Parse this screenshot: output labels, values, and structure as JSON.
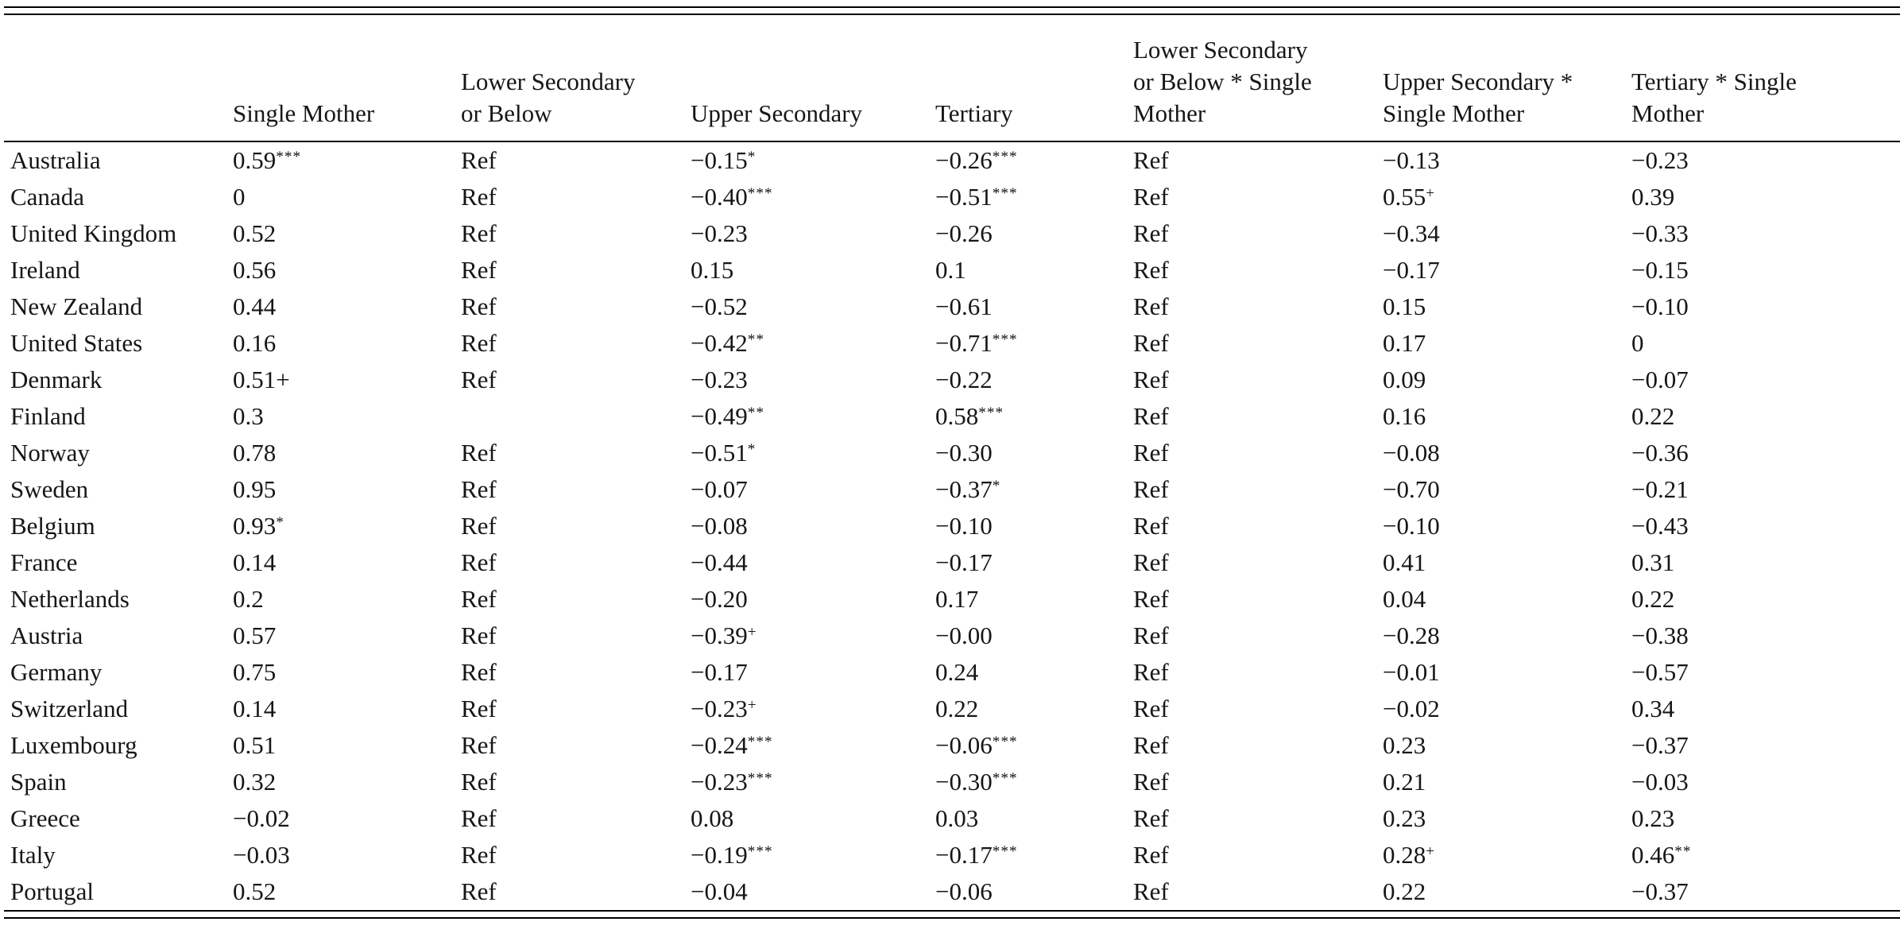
{
  "table": {
    "superscript_marker": "^",
    "columns": [
      {
        "id": "country",
        "lines": [
          ""
        ]
      },
      {
        "id": "single-mother",
        "lines": [
          "Single Mother"
        ]
      },
      {
        "id": "lower-secondary-or-below",
        "lines": [
          "Lower Secondary",
          "or Below"
        ]
      },
      {
        "id": "upper-secondary",
        "lines": [
          "Upper Secondary"
        ]
      },
      {
        "id": "tertiary",
        "lines": [
          "Tertiary"
        ]
      },
      {
        "id": "lower-secondary-or-below-x-single-mother",
        "lines": [
          "Lower Secondary",
          "or Below * Single",
          "Mother"
        ]
      },
      {
        "id": "upper-secondary-x-single-mother",
        "lines": [
          "Upper Secondary *",
          "Single Mother"
        ]
      },
      {
        "id": "tertiary-x-single-mother",
        "lines": [
          "Tertiary * Single",
          "Mother"
        ]
      }
    ],
    "rows": [
      {
        "country": "Australia",
        "values": [
          "0.59^***",
          "Ref",
          "−0.15^*",
          "−0.26^***",
          "Ref",
          "−0.13",
          "−0.23"
        ]
      },
      {
        "country": "Canada",
        "values": [
          "0",
          "Ref",
          "−0.40^***",
          "−0.51^***",
          "Ref",
          "0.55^+",
          "0.39"
        ]
      },
      {
        "country": "United Kingdom",
        "values": [
          "0.52",
          "Ref",
          "−0.23",
          "−0.26",
          "Ref",
          "−0.34",
          "−0.33"
        ]
      },
      {
        "country": "Ireland",
        "values": [
          "0.56",
          "Ref",
          "0.15",
          "0.1",
          "Ref",
          "−0.17",
          "−0.15"
        ]
      },
      {
        "country": "New Zealand",
        "values": [
          "0.44",
          "Ref",
          "−0.52",
          "−0.61",
          "Ref",
          "0.15",
          "−0.10"
        ]
      },
      {
        "country": "United States",
        "values": [
          "0.16",
          "Ref",
          "−0.42^**",
          "−0.71^***",
          "Ref",
          "0.17",
          "0"
        ]
      },
      {
        "country": "Denmark",
        "values": [
          "0.51+",
          "Ref",
          "−0.23",
          "−0.22",
          "Ref",
          "0.09",
          "−0.07"
        ]
      },
      {
        "country": "Finland",
        "values": [
          "0.3",
          "",
          "−0.49^**",
          "0.58^***",
          "Ref",
          "0.16",
          "0.22"
        ]
      },
      {
        "country": "Norway",
        "values": [
          "0.78",
          "Ref",
          "−0.51^*",
          "−0.30",
          "Ref",
          "−0.08",
          "−0.36"
        ]
      },
      {
        "country": "Sweden",
        "values": [
          "0.95",
          "Ref",
          "−0.07",
          "−0.37^*",
          "Ref",
          "−0.70",
          "−0.21"
        ]
      },
      {
        "country": "Belgium",
        "values": [
          "0.93^*",
          "Ref",
          "−0.08",
          "−0.10",
          "Ref",
          "−0.10",
          "−0.43"
        ]
      },
      {
        "country": "France",
        "values": [
          "0.14",
          "Ref",
          "−0.44",
          "−0.17",
          "Ref",
          "0.41",
          "0.31"
        ]
      },
      {
        "country": "Netherlands",
        "values": [
          "0.2",
          "Ref",
          "−0.20",
          "0.17",
          "Ref",
          "0.04",
          "0.22"
        ]
      },
      {
        "country": "Austria",
        "values": [
          "0.57",
          "Ref",
          "−0.39^+",
          "−0.00",
          "Ref",
          "−0.28",
          "−0.38"
        ]
      },
      {
        "country": "Germany",
        "values": [
          "0.75",
          "Ref",
          "−0.17",
          "0.24",
          "Ref",
          "−0.01",
          "−0.57"
        ]
      },
      {
        "country": "Switzerland",
        "values": [
          "0.14",
          "Ref",
          "−0.23^+",
          "0.22",
          "Ref",
          "−0.02",
          "0.34"
        ]
      },
      {
        "country": "Luxembourg",
        "values": [
          "0.51",
          "Ref",
          "−0.24^***",
          "−0.06^***",
          "Ref",
          "0.23",
          "−0.37"
        ]
      },
      {
        "country": "Spain",
        "values": [
          "0.32",
          "Ref",
          "−0.23^***",
          "−0.30^***",
          "Ref",
          "0.21",
          "−0.03"
        ]
      },
      {
        "country": "Greece",
        "values": [
          "−0.02",
          "Ref",
          "0.08",
          "0.03",
          "Ref",
          "0.23",
          "0.23"
        ]
      },
      {
        "country": "Italy",
        "values": [
          "−0.03",
          "Ref",
          "−0.19^***",
          "−0.17^***",
          "Ref",
          "0.28^+",
          "0.46^**"
        ]
      },
      {
        "country": "Portugal",
        "values": [
          "0.52",
          "Ref",
          "−0.04",
          "−0.06",
          "Ref",
          "0.22",
          "−0.37"
        ]
      }
    ]
  }
}
